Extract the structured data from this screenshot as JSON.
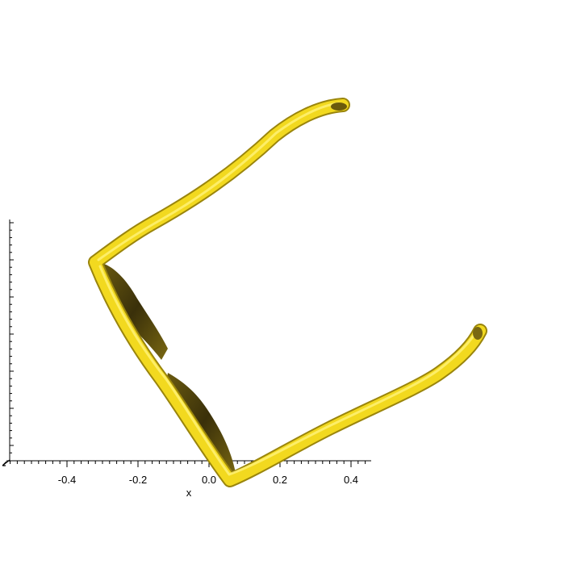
{
  "axes": {
    "x_label": "x",
    "x_ticks": [
      -0.4,
      -0.2,
      0.0,
      0.2,
      0.4
    ],
    "x_tick_labels": [
      "-0.4",
      "-0.2",
      "0.0",
      "0.2",
      "0.4"
    ]
  },
  "surface": {
    "color": "#f2d91f",
    "shadow_color": "#4a3e08"
  }
}
